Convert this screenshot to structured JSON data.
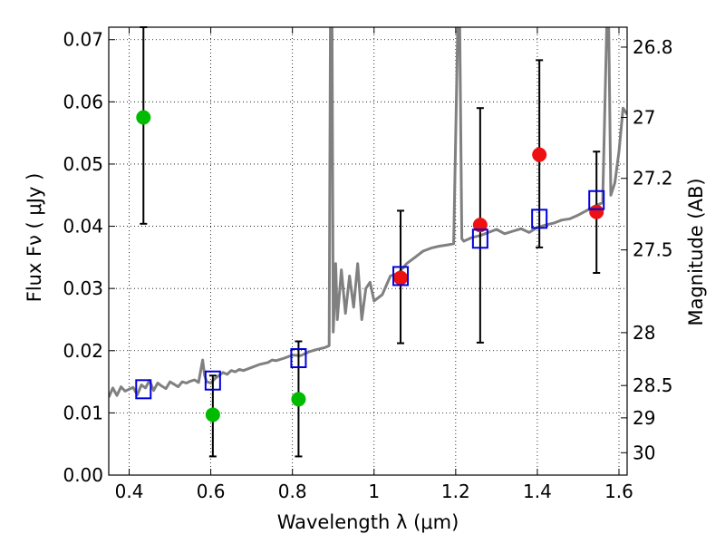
{
  "chart_data": {
    "type": "scatter",
    "title": "",
    "xlabel": "Wavelength  λ (μm)",
    "ylabel": "Flux  Fν  ( μJy )",
    "y2label": "Magnitude (AB)",
    "xlim": [
      0.35,
      1.62
    ],
    "ylim": [
      0.0,
      0.072
    ],
    "grid": true,
    "x_ticks": [
      0.4,
      0.6,
      0.8,
      1.0,
      1.2,
      1.4,
      1.6
    ],
    "x_tick_labels": [
      "0.4",
      "0.6",
      "0.8",
      "1",
      "1.2",
      "1.4",
      "1.6"
    ],
    "y_ticks": [
      0.0,
      0.01,
      0.02,
      0.03,
      0.04,
      0.05,
      0.06,
      0.07
    ],
    "y_tick_labels": [
      "0.00",
      "0.01",
      "0.02",
      "0.03",
      "0.04",
      "0.05",
      "0.06",
      "0.07"
    ],
    "y2_ticks": [
      {
        "label": "26.8",
        "flux": 0.0688
      },
      {
        "label": "27",
        "flux": 0.0575
      },
      {
        "label": "27.2",
        "flux": 0.0477
      },
      {
        "label": "27.5",
        "flux": 0.0362
      },
      {
        "label": "28",
        "flux": 0.0229
      },
      {
        "label": "28.5",
        "flux": 0.0144
      },
      {
        "label": "29",
        "flux": 0.0092
      },
      {
        "label": "30",
        "flux": 0.0036
      }
    ],
    "colors": {
      "model": "#808080",
      "green": "#00bb00",
      "red": "#ee1111",
      "box": "#0000dd",
      "errorbar": "#000000"
    },
    "model_spectrum": {
      "x": [
        0.35,
        0.36,
        0.37,
        0.38,
        0.39,
        0.4,
        0.41,
        0.42,
        0.43,
        0.44,
        0.45,
        0.46,
        0.47,
        0.48,
        0.49,
        0.5,
        0.51,
        0.52,
        0.53,
        0.54,
        0.55,
        0.56,
        0.57,
        0.58,
        0.585,
        0.59,
        0.6,
        0.61,
        0.62,
        0.63,
        0.64,
        0.65,
        0.66,
        0.67,
        0.68,
        0.7,
        0.72,
        0.74,
        0.75,
        0.76,
        0.78,
        0.8,
        0.82,
        0.84,
        0.86,
        0.88,
        0.89,
        0.893,
        0.897,
        0.9,
        0.903,
        0.906,
        0.91,
        0.92,
        0.93,
        0.94,
        0.95,
        0.96,
        0.97,
        0.98,
        0.99,
        1.0,
        1.02,
        1.04,
        1.06,
        1.08,
        1.1,
        1.12,
        1.14,
        1.16,
        1.18,
        1.195,
        1.205,
        1.21,
        1.215,
        1.22,
        1.24,
        1.26,
        1.28,
        1.3,
        1.32,
        1.34,
        1.36,
        1.38,
        1.4,
        1.42,
        1.44,
        1.46,
        1.48,
        1.5,
        1.52,
        1.54,
        1.56,
        1.57,
        1.575,
        1.58,
        1.59,
        1.6,
        1.61,
        1.62
      ],
      "y": [
        0.0125,
        0.014,
        0.0128,
        0.0142,
        0.0135,
        0.0138,
        0.0141,
        0.0129,
        0.0145,
        0.014,
        0.0152,
        0.0136,
        0.0148,
        0.0143,
        0.0139,
        0.015,
        0.0146,
        0.0142,
        0.015,
        0.0148,
        0.0151,
        0.0153,
        0.0149,
        0.0185,
        0.016,
        0.015,
        0.0148,
        0.0155,
        0.016,
        0.0165,
        0.0162,
        0.0168,
        0.0166,
        0.017,
        0.0168,
        0.0173,
        0.0178,
        0.0181,
        0.0185,
        0.0184,
        0.0188,
        0.0193,
        0.0192,
        0.0198,
        0.0202,
        0.0205,
        0.0208,
        0.072,
        0.072,
        0.023,
        0.028,
        0.034,
        0.025,
        0.033,
        0.026,
        0.032,
        0.027,
        0.034,
        0.025,
        0.03,
        0.031,
        0.028,
        0.029,
        0.032,
        0.0325,
        0.034,
        0.035,
        0.036,
        0.0365,
        0.0368,
        0.037,
        0.0372,
        0.072,
        0.072,
        0.038,
        0.0376,
        0.0382,
        0.0385,
        0.039,
        0.0395,
        0.0388,
        0.0392,
        0.0396,
        0.039,
        0.0398,
        0.0402,
        0.0405,
        0.041,
        0.0412,
        0.0418,
        0.0425,
        0.0432,
        0.0438,
        0.072,
        0.072,
        0.045,
        0.047,
        0.052,
        0.059,
        0.058
      ]
    },
    "series": [
      {
        "color": "green",
        "marker": "circle",
        "points": [
          {
            "x": 0.435,
            "y": 0.0575,
            "yerr_low": 0.0404,
            "yerr_high": 0.072
          },
          {
            "x": 0.605,
            "y": 0.0097,
            "yerr_low": 0.003,
            "yerr_high": 0.016
          },
          {
            "x": 0.815,
            "y": 0.0122,
            "yerr_low": 0.003,
            "yerr_high": 0.0215
          }
        ]
      },
      {
        "color": "red",
        "marker": "circle",
        "points": [
          {
            "x": 1.065,
            "y": 0.0317,
            "yerr_low": 0.0212,
            "yerr_high": 0.0425
          },
          {
            "x": 1.26,
            "y": 0.0402,
            "yerr_low": 0.0213,
            "yerr_high": 0.059
          },
          {
            "x": 1.405,
            "y": 0.0515,
            "yerr_low": 0.0366,
            "yerr_high": 0.0667
          },
          {
            "x": 1.545,
            "y": 0.0423,
            "yerr_low": 0.0325,
            "yerr_high": 0.052
          }
        ]
      },
      {
        "color": "box",
        "marker": "square",
        "points": [
          {
            "x": 0.435,
            "y": 0.0138
          },
          {
            "x": 0.605,
            "y": 0.0152
          },
          {
            "x": 0.815,
            "y": 0.0188
          },
          {
            "x": 1.065,
            "y": 0.032
          },
          {
            "x": 1.26,
            "y": 0.038
          },
          {
            "x": 1.405,
            "y": 0.0412
          },
          {
            "x": 1.545,
            "y": 0.0442
          }
        ]
      }
    ]
  }
}
